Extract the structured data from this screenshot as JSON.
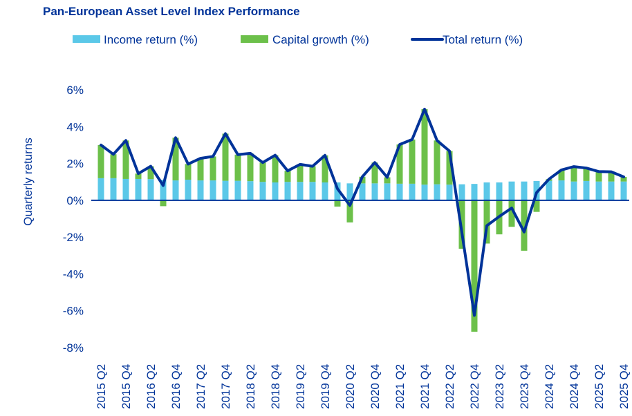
{
  "chart_data": {
    "type": "bar",
    "title": "Pan-European Asset Level Index Performance",
    "xlabel": "",
    "ylabel": "Quarterly returns",
    "ylim": [
      -8,
      6
    ],
    "yticks": [
      6,
      4,
      2,
      0,
      -2,
      -4,
      -6,
      -8
    ],
    "ytick_labels": [
      "6%",
      "4%",
      "2%",
      "0%",
      "-2%",
      "-4%",
      "-6%",
      "-8%"
    ],
    "legend_position": "top",
    "grid": false,
    "colors": {
      "income": "#5bc8e8",
      "capital": "#6cc04a",
      "total": "#003399",
      "text": "#003399"
    },
    "legend": [
      "Income return (%)",
      "Capital growth (%)",
      "Total return (%)"
    ],
    "categories": [
      "2015 Q2",
      "2015 Q3",
      "2015 Q4",
      "2016 Q1",
      "2016 Q2",
      "2016 Q3",
      "2016 Q4",
      "2017 Q1",
      "2017 Q2",
      "2017 Q3",
      "2017 Q4",
      "2018 Q1",
      "2018 Q2",
      "2018 Q3",
      "2018 Q4",
      "2019 Q1",
      "2019 Q2",
      "2019 Q3",
      "2019 Q4",
      "2020 Q1",
      "2020 Q2",
      "2020 Q3",
      "2020 Q4",
      "2021 Q1",
      "2021 Q2",
      "2021 Q3",
      "2021 Q4",
      "2022 Q1",
      "2022 Q2",
      "2022 Q3",
      "2022 Q4",
      "2023 Q1",
      "2023 Q2",
      "2023 Q3",
      "2023 Q4",
      "2024 Q1",
      "2024 Q2",
      "2024 Q3",
      "2024 Q4",
      "2025 Q1",
      "2025 Q2",
      "2025 Q3",
      "2025 Q4"
    ],
    "tick_labels": [
      "2015 Q2",
      "2015 Q4",
      "2016 Q2",
      "2016 Q4",
      "2017 Q2",
      "2017 Q4",
      "2018 Q2",
      "2018 Q4",
      "2019 Q2",
      "2019 Q4",
      "2020 Q2",
      "2020 Q4",
      "2021 Q2",
      "2021 Q4",
      "2022 Q2",
      "2022 Q4",
      "2023 Q2",
      "2023 Q4",
      "2024 Q2",
      "2024 Q4",
      "2025 Q2",
      "2025 Q4"
    ],
    "series": [
      {
        "name": "Income return (%)",
        "kind": "bar",
        "values": [
          1.2,
          1.2,
          1.16,
          1.16,
          1.15,
          1.12,
          1.08,
          1.12,
          1.08,
          1.08,
          1.06,
          1.06,
          1.04,
          1.0,
          0.97,
          1.0,
          1.0,
          1.0,
          0.97,
          0.97,
          0.92,
          0.92,
          0.92,
          0.92,
          0.9,
          0.9,
          0.85,
          0.87,
          0.85,
          0.87,
          0.89,
          0.97,
          0.97,
          1.02,
          1.02,
          1.05,
          1.06,
          1.08,
          1.02,
          1.05,
          1.02,
          1.02,
          1.02
        ]
      },
      {
        "name": "Capital growth (%)",
        "kind": "bar",
        "values": [
          1.8,
          1.3,
          2.09,
          0.29,
          0.7,
          -0.32,
          2.32,
          0.85,
          1.2,
          1.3,
          2.56,
          1.42,
          1.51,
          1.05,
          1.48,
          0.6,
          0.95,
          0.85,
          1.47,
          -0.34,
          -1.2,
          0.36,
          1.13,
          0.33,
          2.13,
          2.4,
          4.1,
          2.38,
          1.83,
          -2.63,
          -7.14,
          -2.35,
          -1.85,
          -1.44,
          -2.74,
          -0.63,
          0.09,
          0.57,
          0.81,
          0.7,
          0.54,
          0.53,
          0.25
        ]
      },
      {
        "name": "Total return (%)",
        "kind": "line",
        "values": [
          3.0,
          2.5,
          3.25,
          1.45,
          1.85,
          0.8,
          3.4,
          1.97,
          2.28,
          2.38,
          3.62,
          2.48,
          2.55,
          2.05,
          2.45,
          1.6,
          1.95,
          1.85,
          2.44,
          0.63,
          -0.28,
          1.28,
          2.05,
          1.25,
          3.03,
          3.3,
          4.95,
          3.25,
          2.68,
          -1.76,
          -6.25,
          -1.38,
          -0.88,
          -0.42,
          -1.72,
          0.42,
          1.15,
          1.65,
          1.83,
          1.75,
          1.56,
          1.55,
          1.27
        ]
      }
    ]
  }
}
